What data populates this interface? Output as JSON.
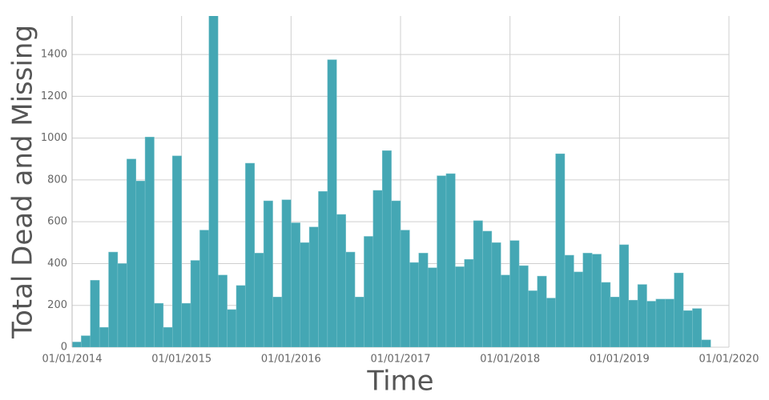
{
  "chart_data": {
    "type": "bar",
    "x_label": "Time",
    "y_label": "Total Dead and Missing",
    "color": "#44a7b4",
    "categories": [
      null,
      null,
      null,
      null,
      null,
      null,
      null,
      null,
      null,
      null,
      null,
      null,
      null,
      null,
      null,
      null,
      null,
      null,
      null,
      null,
      null,
      null,
      null,
      null,
      null,
      null,
      null,
      null,
      null,
      null,
      null,
      null,
      null,
      null,
      null,
      null,
      null,
      null,
      null,
      null,
      null,
      null,
      null,
      null,
      null,
      null,
      null,
      null,
      null,
      null,
      null,
      null,
      null,
      null,
      null,
      null,
      null,
      null,
      null,
      null,
      null,
      null,
      null,
      null,
      null,
      null,
      null,
      null,
      null,
      null
    ],
    "values": [
      25,
      55,
      320,
      95,
      455,
      400,
      900,
      795,
      1005,
      210,
      95,
      915,
      210,
      415,
      560,
      1650,
      345,
      180,
      295,
      880,
      450,
      700,
      240,
      705,
      595,
      500,
      575,
      745,
      1375,
      635,
      455,
      240,
      530,
      750,
      940,
      700,
      560,
      405,
      450,
      380,
      820,
      830,
      385,
      420,
      605,
      555,
      500,
      345,
      510,
      390,
      270,
      340,
      235,
      925,
      440,
      360,
      450,
      445,
      310,
      240,
      490,
      225,
      300,
      220,
      230,
      230,
      355,
      175,
      185,
      35
    ],
    "xlim": [
      0,
      72
    ],
    "xticks": [
      {
        "value": 0,
        "label": "01/01/2014"
      },
      {
        "value": 12,
        "label": "01/01/2015"
      },
      {
        "value": 24,
        "label": "01/01/2016"
      },
      {
        "value": 36,
        "label": "01/01/2017"
      },
      {
        "value": 48,
        "label": "01/01/2018"
      },
      {
        "value": 60,
        "label": "01/01/2019"
      },
      {
        "value": 72,
        "label": "01/01/2020"
      }
    ],
    "ylim": [
      0,
      1584
    ],
    "yticks": [
      0,
      200,
      400,
      600,
      800,
      1000,
      1200,
      1400
    ],
    "grid": true
  }
}
